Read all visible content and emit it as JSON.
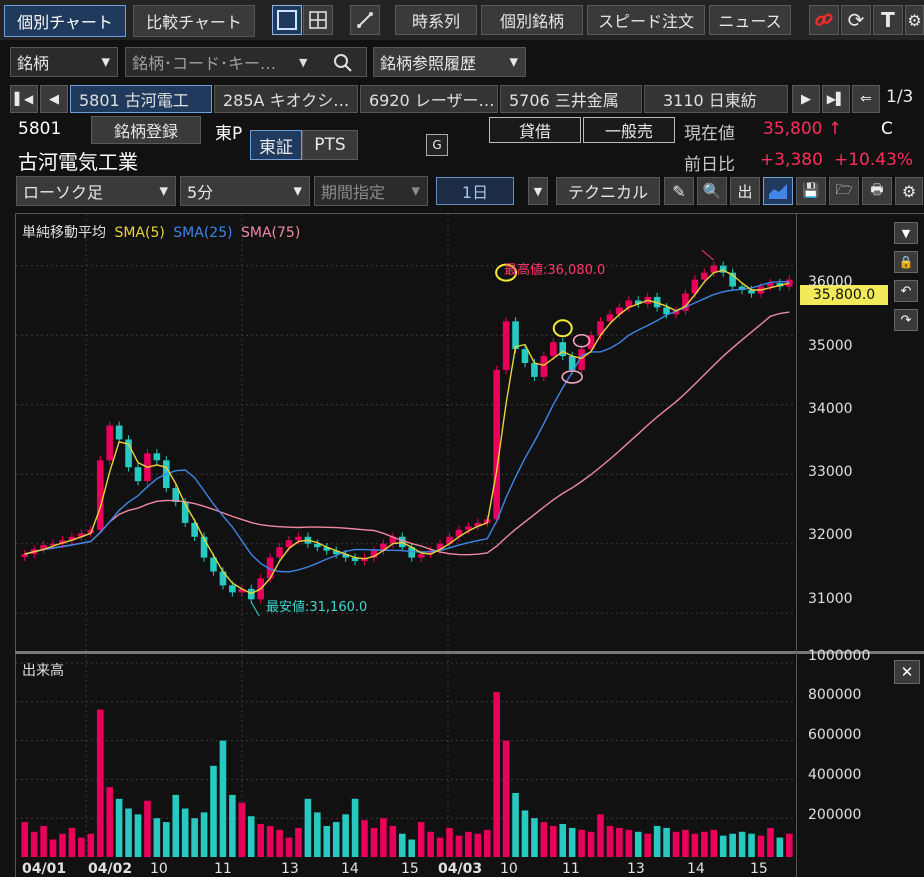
{
  "tabs": {
    "kobetsu": "個別チャート",
    "hikaku": "比較チャート"
  },
  "toolbar": {
    "jikeiretsu": "時系列",
    "kobetsu_meigara": "個別銘柄",
    "speed": "スピード注文",
    "news": "ニュース"
  },
  "search": {
    "mode": "銘柄",
    "placeholder": "銘柄･コード･キー…",
    "history": "銘柄参照履歴"
  },
  "symbol_tabs": [
    "5801 古河電工",
    "285A キオクシ…",
    "6920 レーザー…",
    "5706 三井金属",
    "3110 日東紡"
  ],
  "page_indicator": "1/3",
  "stock": {
    "code": "5801",
    "register": "銘柄登録",
    "market_short": "東P",
    "name": "古河電気工業",
    "exch_tse": "東証",
    "exch_pts": "PTS",
    "g_badge": "G",
    "taishaku": "貸借",
    "ippan": "一般売",
    "price_label": "現在値",
    "price": "35,800",
    "price_arrow": "↑",
    "price_flag": "C",
    "change_label": "前日比",
    "change": "+3,380",
    "change_pct": "+10.43%"
  },
  "controls": {
    "chart_type": "ローソク足",
    "interval": "5分",
    "period": "期間指定",
    "days": "1日",
    "technical": "テクニカル"
  },
  "chart": {
    "indicator_title": "単純移動平均",
    "sma5": "SMA(5)",
    "sma25": "SMA(25)",
    "sma75": "SMA(75)",
    "high_label": "最高値:36,080.0",
    "low_label": "最安値:31,160.0",
    "current_price_tag": "35,800.0",
    "volume_title": "出来高",
    "colors": {
      "up": "#e8005a",
      "down": "#27c9c0",
      "sma5": "#e6d43a",
      "sma25": "#3f86e6",
      "sma75": "#f08aa3",
      "bg": "#111111"
    }
  },
  "chart_data": [
    {
      "type": "candlestick",
      "title": "単純移動平均",
      "series": [
        {
          "name": "SMA(5)"
        },
        {
          "name": "SMA(25)"
        },
        {
          "name": "SMA(75)"
        }
      ],
      "ylim": [
        30600,
        36600
      ],
      "y_ticks": [
        31000,
        32000,
        33000,
        34000,
        35000,
        36000
      ],
      "x_ticks": [
        "04/01",
        "04/02",
        "10",
        "11",
        "13",
        "14",
        "15",
        "04/03",
        "10",
        "11",
        "13",
        "14",
        "15"
      ],
      "high": 36080,
      "low": 31160,
      "last": 35800,
      "close": [
        31850,
        31920,
        31980,
        32000,
        32050,
        32100,
        32150,
        32200,
        33200,
        33700,
        33500,
        33100,
        32900,
        33300,
        33200,
        32800,
        32600,
        32300,
        32100,
        31800,
        31600,
        31400,
        31300,
        31350,
        31200,
        31500,
        31800,
        31950,
        32050,
        32100,
        32000,
        31950,
        31900,
        31850,
        31800,
        31750,
        31800,
        31900,
        32000,
        32100,
        31950,
        31800,
        31850,
        31900,
        32000,
        32100,
        32200,
        32250,
        32300,
        32350,
        34500,
        35200,
        34800,
        34600,
        34400,
        34700,
        34900,
        34700,
        34500,
        34800,
        35000,
        35200,
        35300,
        35400,
        35500,
        35450,
        35550,
        35400,
        35300,
        35350,
        35600,
        35800,
        35900,
        36000,
        35900,
        35700,
        35650,
        35600,
        35700,
        35750,
        35700,
        35800
      ]
    },
    {
      "type": "bar",
      "title": "出来高",
      "ylim": [
        0,
        1000000
      ],
      "y_ticks": [
        200000,
        400000,
        600000,
        800000,
        1000000
      ],
      "values": [
        180000,
        130000,
        160000,
        90000,
        120000,
        150000,
        100000,
        120000,
        760000,
        360000,
        300000,
        250000,
        220000,
        290000,
        200000,
        180000,
        320000,
        250000,
        200000,
        230000,
        470000,
        600000,
        320000,
        280000,
        210000,
        170000,
        160000,
        140000,
        100000,
        150000,
        300000,
        230000,
        160000,
        180000,
        220000,
        300000,
        190000,
        150000,
        200000,
        160000,
        120000,
        90000,
        180000,
        130000,
        100000,
        150000,
        110000,
        130000,
        120000,
        140000,
        850000,
        600000,
        330000,
        240000,
        200000,
        180000,
        160000,
        170000,
        150000,
        140000,
        130000,
        220000,
        160000,
        150000,
        140000,
        130000,
        120000,
        160000,
        150000,
        130000,
        140000,
        120000,
        130000,
        140000,
        110000,
        120000,
        130000,
        120000,
        110000,
        150000,
        100000,
        120000
      ]
    }
  ]
}
